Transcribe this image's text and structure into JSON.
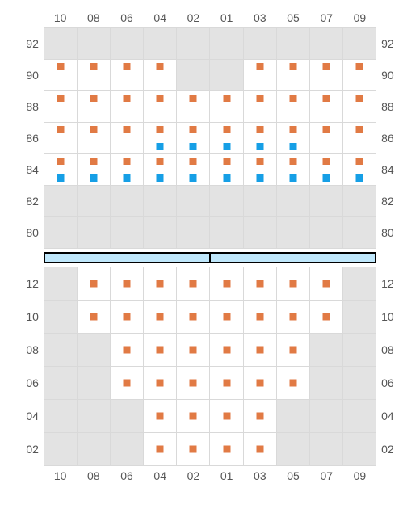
{
  "colors": {
    "orange": "#e17a44",
    "blue": "#169fe6",
    "empty_bg": "#e3e3e3",
    "grid_line": "#d9d9d9",
    "divider_fill": "#bfe7fb",
    "divider_border": "#000000",
    "label_color": "#555555"
  },
  "layout": {
    "cell_size": 41,
    "marker_size": 9,
    "columns": 10
  },
  "column_labels": [
    "10",
    "08",
    "06",
    "04",
    "02",
    "01",
    "03",
    "05",
    "07",
    "09"
  ],
  "upper": {
    "row_labels": [
      "92",
      "90",
      "88",
      "86",
      "84",
      "82",
      "80"
    ],
    "rows": [
      [
        {
          "e": true
        },
        {
          "e": true
        },
        {
          "e": true
        },
        {
          "e": true
        },
        {
          "e": true
        },
        {
          "e": true
        },
        {
          "e": true
        },
        {
          "e": true
        },
        {
          "e": true
        },
        {
          "e": true
        }
      ],
      [
        {
          "t": "orange"
        },
        {
          "t": "orange"
        },
        {
          "t": "orange"
        },
        {
          "t": "orange"
        },
        {
          "e": true
        },
        {
          "e": true
        },
        {
          "t": "orange"
        },
        {
          "t": "orange"
        },
        {
          "t": "orange"
        },
        {
          "t": "orange"
        }
      ],
      [
        {
          "t": "orange"
        },
        {
          "t": "orange"
        },
        {
          "t": "orange"
        },
        {
          "t": "orange"
        },
        {
          "t": "orange"
        },
        {
          "t": "orange"
        },
        {
          "t": "orange"
        },
        {
          "t": "orange"
        },
        {
          "t": "orange"
        },
        {
          "t": "orange"
        }
      ],
      [
        {
          "t": "orange"
        },
        {
          "t": "orange"
        },
        {
          "t": "orange"
        },
        {
          "t": "orange",
          "b": "blue"
        },
        {
          "t": "orange",
          "b": "blue"
        },
        {
          "t": "orange",
          "b": "blue"
        },
        {
          "t": "orange",
          "b": "blue"
        },
        {
          "t": "orange",
          "b": "blue"
        },
        {
          "t": "orange"
        },
        {
          "t": "orange"
        }
      ],
      [
        {
          "t": "orange",
          "b": "blue"
        },
        {
          "t": "orange",
          "b": "blue"
        },
        {
          "t": "orange",
          "b": "blue"
        },
        {
          "t": "orange",
          "b": "blue"
        },
        {
          "t": "orange",
          "b": "blue"
        },
        {
          "t": "orange",
          "b": "blue"
        },
        {
          "t": "orange",
          "b": "blue"
        },
        {
          "t": "orange",
          "b": "blue"
        },
        {
          "t": "orange",
          "b": "blue"
        },
        {
          "t": "orange",
          "b": "blue"
        }
      ],
      [
        {
          "e": true
        },
        {
          "e": true
        },
        {
          "e": true
        },
        {
          "e": true
        },
        {
          "e": true
        },
        {
          "e": true
        },
        {
          "e": true
        },
        {
          "e": true
        },
        {
          "e": true
        },
        {
          "e": true
        }
      ],
      [
        {
          "e": true
        },
        {
          "e": true
        },
        {
          "e": true
        },
        {
          "e": true
        },
        {
          "e": true
        },
        {
          "e": true
        },
        {
          "e": true
        },
        {
          "e": true
        },
        {
          "e": true
        },
        {
          "e": true
        }
      ]
    ]
  },
  "lower": {
    "row_labels": [
      "12",
      "10",
      "08",
      "06",
      "04",
      "02"
    ],
    "rows": [
      [
        {
          "e": true
        },
        {
          "c": "orange"
        },
        {
          "c": "orange"
        },
        {
          "c": "orange"
        },
        {
          "c": "orange"
        },
        {
          "c": "orange"
        },
        {
          "c": "orange"
        },
        {
          "c": "orange"
        },
        {
          "c": "orange"
        },
        {
          "e": true
        }
      ],
      [
        {
          "e": true
        },
        {
          "c": "orange"
        },
        {
          "c": "orange"
        },
        {
          "c": "orange"
        },
        {
          "c": "orange"
        },
        {
          "c": "orange"
        },
        {
          "c": "orange"
        },
        {
          "c": "orange"
        },
        {
          "c": "orange"
        },
        {
          "e": true
        }
      ],
      [
        {
          "e": true
        },
        {
          "e": true
        },
        {
          "c": "orange"
        },
        {
          "c": "orange"
        },
        {
          "c": "orange"
        },
        {
          "c": "orange"
        },
        {
          "c": "orange"
        },
        {
          "c": "orange"
        },
        {
          "e": true
        },
        {
          "e": true
        }
      ],
      [
        {
          "e": true
        },
        {
          "e": true
        },
        {
          "c": "orange"
        },
        {
          "c": "orange"
        },
        {
          "c": "orange"
        },
        {
          "c": "orange"
        },
        {
          "c": "orange"
        },
        {
          "c": "orange"
        },
        {
          "e": true
        },
        {
          "e": true
        }
      ],
      [
        {
          "e": true
        },
        {
          "e": true
        },
        {
          "e": true
        },
        {
          "c": "orange"
        },
        {
          "c": "orange"
        },
        {
          "c": "orange"
        },
        {
          "c": "orange"
        },
        {
          "e": true
        },
        {
          "e": true
        },
        {
          "e": true
        }
      ],
      [
        {
          "e": true
        },
        {
          "e": true
        },
        {
          "e": true
        },
        {
          "c": "orange"
        },
        {
          "c": "orange"
        },
        {
          "c": "orange"
        },
        {
          "c": "orange"
        },
        {
          "e": true
        },
        {
          "e": true
        },
        {
          "e": true
        }
      ]
    ]
  }
}
